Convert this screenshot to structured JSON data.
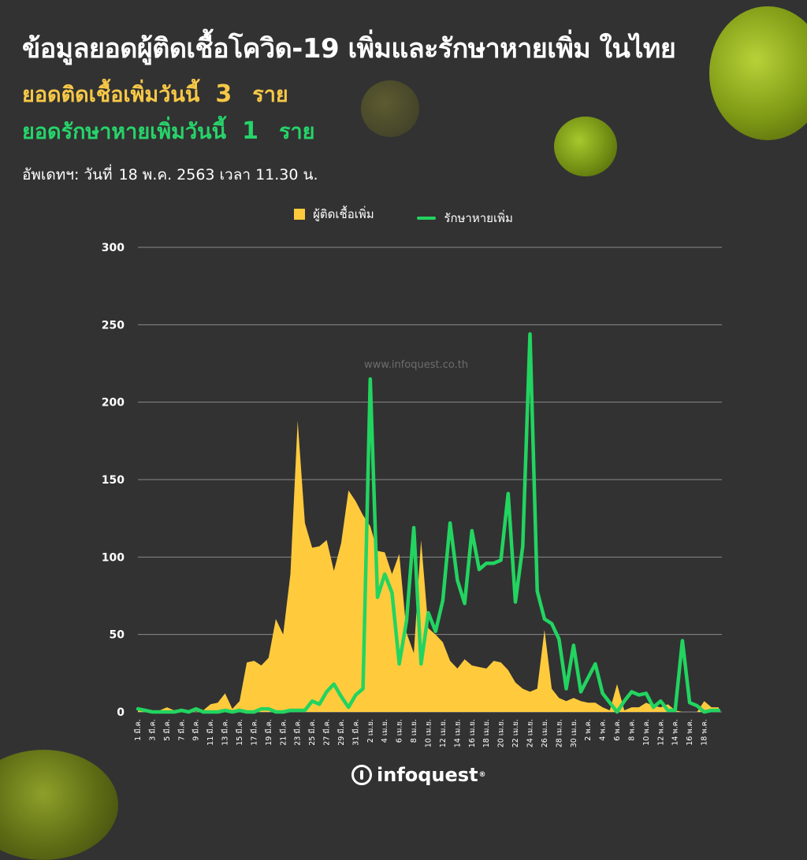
{
  "header": {
    "title": "ข้อมูลยอดผู้ติดเชื้อโควิด-19 เพิ่มและรักษาหายเพิ่ม ในไทย",
    "infected_label": "ยอดติดเชื้อเพิ่มวันนี้",
    "infected_value": "3",
    "infected_unit": "ราย",
    "recovered_label": "ยอดรักษาหายเพิ่มวันนี้",
    "recovered_value": "1",
    "recovered_unit": "ราย",
    "updated_label": "อัพเดทฯ: วันที่",
    "updated_value": "18 พ.ค. 2563 เวลา 11.30 น."
  },
  "watermark": "www.infoquest.co.th",
  "brand": {
    "name": "infoquest",
    "mark": "®"
  },
  "colors": {
    "infected": "#ffcb3d",
    "recovered": "#22d460",
    "background": "#323232"
  },
  "chart_data": {
    "type": "area",
    "title": "",
    "xlabel": "",
    "ylabel": "",
    "ylim": [
      0,
      300
    ],
    "yticks": [
      0,
      50,
      100,
      150,
      200,
      250,
      300
    ],
    "grid": true,
    "legend_position": "top-center",
    "x_tick_labels": [
      "1 มี.ค.",
      "3 มี.ค.",
      "5 มี.ค.",
      "7 มี.ค.",
      "9 มี.ค.",
      "11 มี.ค.",
      "13 มี.ค.",
      "15 มี.ค.",
      "17 มี.ค.",
      "19 มี.ค.",
      "21 มี.ค.",
      "23 มี.ค.",
      "25 มี.ค.",
      "27 มี.ค.",
      "29 มี.ค.",
      "31 มี.ค.",
      "2 เม.ย.",
      "4 เม.ย.",
      "6 เม.ย.",
      "8 เม.ย.",
      "10 เม.ย.",
      "12 เม.ย.",
      "14 เม.ย.",
      "16 เม.ย.",
      "18 เม.ย.",
      "20 เม.ย.",
      "22 เม.ย.",
      "24 เม.ย.",
      "26 เม.ย.",
      "28 เม.ย.",
      "30 เม.ย.",
      "2 พ.ค.",
      "4 พ.ค.",
      "6 พ.ค.",
      "8 พ.ค.",
      "10 พ.ค.",
      "12 พ.ค.",
      "14 พ.ค.",
      "16 พ.ค.",
      "18 พ.ค."
    ],
    "series": [
      {
        "name": "ผู้ติดเชื้อเพิ่ม",
        "type": "area",
        "values": [
          1,
          0,
          0,
          1,
          3,
          1,
          0,
          1,
          0,
          1,
          5,
          6,
          12,
          2,
          7,
          32,
          33,
          30,
          35,
          60,
          50,
          89,
          188,
          122,
          106,
          107,
          111,
          91,
          109,
          143,
          136,
          127,
          120,
          104,
          103,
          89,
          102,
          51,
          38,
          111,
          54,
          50,
          45,
          33,
          28,
          34,
          30,
          29,
          28,
          33,
          32,
          27,
          19,
          15,
          13,
          15,
          53,
          15,
          9,
          7,
          9,
          7,
          6,
          6,
          3,
          1,
          18,
          1,
          3,
          3,
          6,
          4,
          3,
          5,
          1,
          0,
          0,
          0,
          7,
          3,
          3
        ]
      },
      {
        "name": "รักษาหายเพิ่ม",
        "type": "line",
        "values": [
          2,
          1,
          0,
          0,
          0,
          0,
          1,
          0,
          2,
          0,
          0,
          0,
          1,
          0,
          1,
          0,
          0,
          2,
          2,
          0,
          0,
          1,
          1,
          1,
          7,
          5,
          13,
          18,
          10,
          3,
          11,
          15,
          215,
          74,
          89,
          77,
          31,
          59,
          119,
          31,
          64,
          52,
          72,
          122,
          85,
          70,
          117,
          92,
          96,
          96,
          98,
          141,
          71,
          107,
          244,
          78,
          60,
          57,
          47,
          15,
          43,
          13,
          22,
          31,
          12,
          6,
          0,
          7,
          13,
          11,
          12,
          3,
          7,
          1,
          1,
          46,
          6,
          4,
          0,
          1,
          1
        ]
      }
    ]
  }
}
